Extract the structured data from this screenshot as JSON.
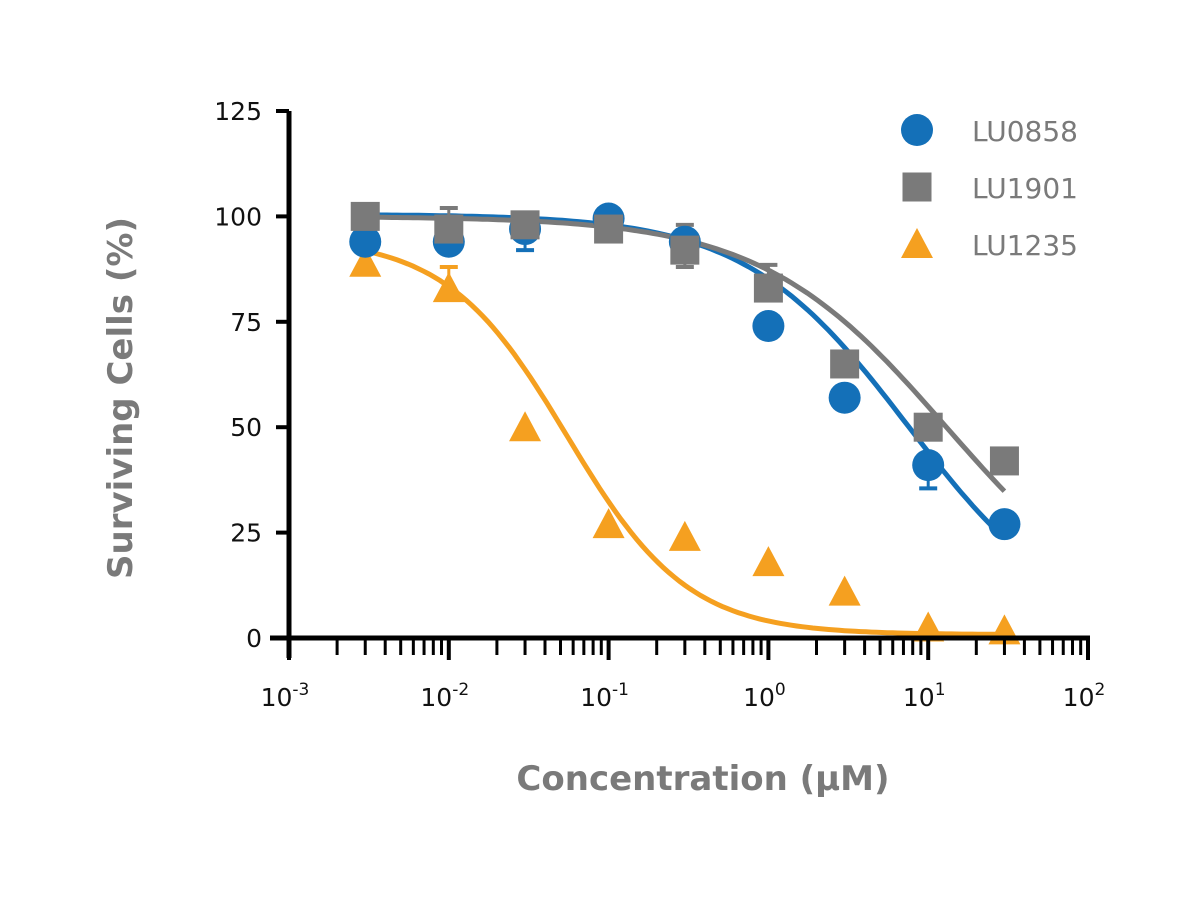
{
  "chart_data": {
    "type": "scatter",
    "title": "",
    "xlabel": "Concentration (µM)",
    "ylabel": "Surviving Cells (%)",
    "xscale": "log",
    "xlim": [
      0.001,
      100
    ],
    "ylim": [
      0,
      125
    ],
    "x_ticks": [
      {
        "base": "10",
        "exp": "-3"
      },
      {
        "base": "10",
        "exp": "-2"
      },
      {
        "base": "10",
        "exp": "-1"
      },
      {
        "base": "10",
        "exp": "0"
      },
      {
        "base": "10",
        "exp": "1"
      },
      {
        "base": "10",
        "exp": "2"
      }
    ],
    "y_ticks": [
      "0",
      "25",
      "50",
      "75",
      "100",
      "125"
    ],
    "grid": false,
    "legend_position": "top-right",
    "x": [
      0.003,
      0.01,
      0.03,
      0.1,
      0.3,
      1,
      3,
      10,
      30
    ],
    "series": [
      {
        "name": "LU0858",
        "marker": "circle",
        "color": "#1470b8",
        "values": [
          94,
          94,
          97,
          99.5,
          94,
          74,
          57,
          41,
          27
        ],
        "error_low": [
          null,
          null,
          92,
          null,
          null,
          null,
          null,
          35.5,
          null
        ],
        "error_high": [
          null,
          null,
          null,
          null,
          null,
          null,
          null,
          null,
          null
        ],
        "fit": {
          "top": 100.5,
          "bottom": 0,
          "ic50": 7.5,
          "hill": 0.85
        }
      },
      {
        "name": "LU1901",
        "marker": "square",
        "color": "#7a7a7a",
        "values": [
          100,
          97,
          98,
          97,
          92,
          83,
          65,
          50,
          42
        ],
        "error_low": [
          null,
          null,
          null,
          null,
          88,
          null,
          null,
          null,
          null
        ],
        "error_high": [
          null,
          102,
          null,
          null,
          98,
          88.5,
          null,
          null,
          null
        ],
        "fit": {
          "top": 100,
          "bottom": 0,
          "ic50": 13,
          "hill": 0.75
        }
      },
      {
        "name": "LU1235",
        "marker": "triangle",
        "color": "#f5a020",
        "values": [
          89,
          83,
          50,
          27,
          24,
          18,
          11,
          2.5,
          1.8
        ],
        "error_low": [
          null,
          null,
          null,
          null,
          null,
          null,
          null,
          null,
          null
        ],
        "error_high": [
          null,
          88,
          null,
          null,
          null,
          null,
          null,
          null,
          null
        ],
        "fit": {
          "top": 95,
          "bottom": 0.8,
          "ic50": 0.055,
          "hill": 1.15
        }
      }
    ]
  }
}
